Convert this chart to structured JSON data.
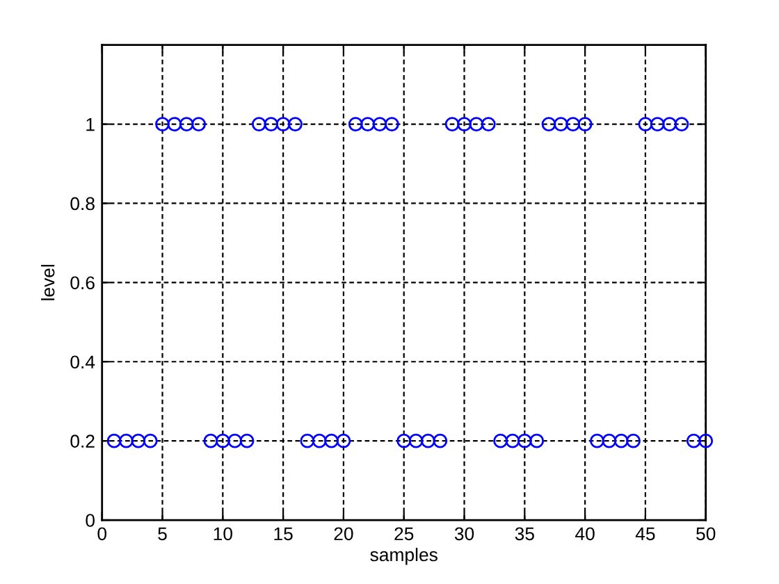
{
  "chart_data": {
    "type": "scatter",
    "xlabel": "samples",
    "ylabel": "level",
    "x": [
      1,
      2,
      3,
      4,
      5,
      6,
      7,
      8,
      9,
      10,
      11,
      12,
      13,
      14,
      15,
      16,
      17,
      18,
      19,
      20,
      21,
      22,
      23,
      24,
      25,
      26,
      27,
      28,
      29,
      30,
      31,
      32,
      33,
      34,
      35,
      36,
      37,
      38,
      39,
      40,
      41,
      42,
      43,
      44,
      45,
      46,
      47,
      48,
      49,
      50
    ],
    "values": [
      0.2,
      0.2,
      0.2,
      0.2,
      1,
      1,
      1,
      1,
      0.2,
      0.2,
      0.2,
      0.2,
      1,
      1,
      1,
      1,
      0.2,
      0.2,
      0.2,
      0.2,
      1,
      1,
      1,
      1,
      0.2,
      0.2,
      0.2,
      0.2,
      1,
      1,
      1,
      1,
      0.2,
      0.2,
      0.2,
      0.2,
      1,
      1,
      1,
      1,
      0.2,
      0.2,
      0.2,
      0.2,
      1,
      1,
      1,
      1,
      0.2,
      0.2
    ],
    "color": "#0000ff",
    "marker": "circle",
    "xlim": [
      0,
      50
    ],
    "ylim": [
      0,
      1.2
    ],
    "xticks": [
      0,
      5,
      10,
      15,
      20,
      25,
      30,
      35,
      40,
      45,
      50
    ],
    "yticks": [
      0,
      0.2,
      0.4,
      0.6,
      0.8,
      1
    ],
    "grid": true
  }
}
